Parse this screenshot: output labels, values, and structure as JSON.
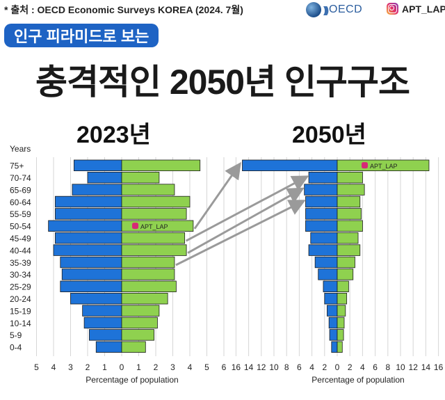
{
  "header": {
    "source": "* 출처 : OECD Economic Surveys KOREA (2024. 7월)",
    "oecd_logo_text": "OECD",
    "instagram_handle": "APT_LAP",
    "subtitle_pill": "인구 피라미드로 보는",
    "headline": "충격적인 2050년 인구구조",
    "pill_color": "#1e63c4"
  },
  "chart_data": [
    {
      "type": "bar",
      "title": "2023년",
      "ylabel": "Years",
      "xlabel": "Percentage of population",
      "categories": [
        "75+",
        "70-74",
        "65-69",
        "60-64",
        "55-59",
        "50-54",
        "45-49",
        "40-44",
        "35-39",
        "30-34",
        "25-29",
        "20-24",
        "15-19",
        "10-14",
        "5-9",
        "0-4"
      ],
      "series": [
        {
          "side": "left",
          "color": "#1e73d8",
          "values": [
            2.8,
            2.0,
            2.9,
            3.9,
            3.9,
            4.3,
            3.9,
            4.0,
            3.6,
            3.5,
            3.6,
            3.0,
            2.3,
            2.2,
            1.9,
            1.5
          ]
        },
        {
          "side": "right",
          "color": "#8fd14f",
          "values": [
            4.6,
            2.2,
            3.1,
            4.0,
            3.8,
            4.2,
            3.7,
            3.8,
            3.1,
            3.1,
            3.2,
            2.7,
            2.2,
            2.1,
            1.9,
            1.4
          ]
        }
      ],
      "x_ticks_left": [
        "5",
        "4",
        "3",
        "2",
        "1",
        "0"
      ],
      "x_ticks_right": [
        "1",
        "2",
        "3",
        "4",
        "5",
        "6"
      ],
      "xlim": [
        -5,
        6
      ],
      "watermark": "APT_LAP"
    },
    {
      "type": "bar",
      "title": "2050년",
      "xlabel": "Percentage of population",
      "categories": [
        "75+",
        "70-74",
        "65-69",
        "60-64",
        "55-59",
        "50-54",
        "45-49",
        "40-44",
        "35-39",
        "30-34",
        "25-29",
        "20-24",
        "15-19",
        "10-14",
        "5-9",
        "0-4"
      ],
      "series": [
        {
          "side": "left",
          "color": "#1e73d8",
          "values": [
            15.0,
            4.5,
            5.2,
            5.0,
            5.0,
            5.0,
            4.2,
            4.5,
            3.5,
            3.0,
            2.2,
            2.0,
            1.6,
            1.3,
            1.2,
            0.9
          ]
        },
        {
          "side": "right",
          "color": "#8fd14f",
          "values": [
            14.5,
            4.0,
            4.3,
            3.6,
            3.8,
            4.0,
            3.3,
            3.6,
            2.8,
            2.5,
            1.8,
            1.5,
            1.3,
            1.1,
            1.0,
            0.8
          ]
        }
      ],
      "x_ticks_left": [
        "16",
        "14",
        "12",
        "10",
        "8",
        "6",
        "4",
        "2",
        "0"
      ],
      "x_ticks_right": [
        "2",
        "4",
        "6",
        "8",
        "10",
        "12",
        "14",
        "16"
      ],
      "xlim": [
        -16,
        16
      ],
      "watermark": "APT_LAP"
    }
  ],
  "arrows": [
    {
      "from": "50-54",
      "to": "75+"
    },
    {
      "from": "45-49",
      "to": "70-74"
    },
    {
      "from": "40-44",
      "to": "65-69"
    },
    {
      "from": "35-39",
      "to": "60-64"
    }
  ]
}
